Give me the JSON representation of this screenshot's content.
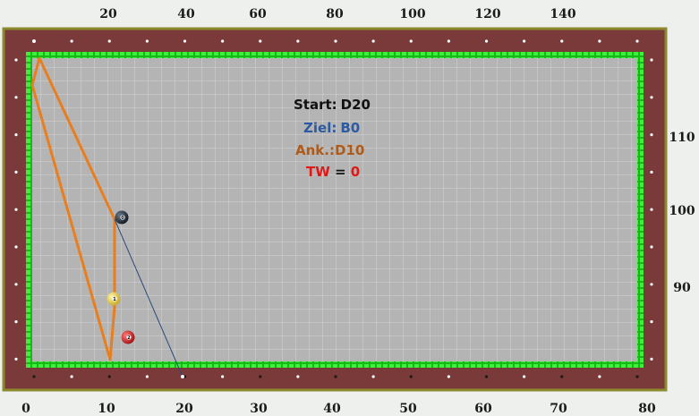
{
  "scales": {
    "top": [
      "20",
      "40",
      "60",
      "80",
      "100",
      "120",
      "140"
    ],
    "bottom": [
      "0",
      "10",
      "20",
      "30",
      "40",
      "50",
      "60",
      "70",
      "80"
    ],
    "right": [
      "110",
      "100",
      "90"
    ]
  },
  "info": {
    "start_label": "Start:",
    "start_value": "D20",
    "ziel_label": "Ziel:",
    "ziel_value": "B0",
    "ank_label": "Ank.:",
    "ank_value": "D10",
    "tw_label": "TW",
    "tw_eq": " = ",
    "tw_value": "0"
  },
  "balls": [
    {
      "name": "black-ball",
      "label": "0",
      "color": "#1b2a3a"
    },
    {
      "name": "yellow-ball",
      "label": "1",
      "color": "#e8d64a"
    },
    {
      "name": "red-ball",
      "label": "2",
      "color": "#cc1f1f"
    }
  ],
  "colors": {
    "rail": "#7a3a3a",
    "cloth": "#b4b4b4",
    "cushion": "#22dd22",
    "path": "#e87e1e",
    "aim_line": "#2a4a7a",
    "start_color": "#111111",
    "ziel_color": "#2e5aa0",
    "ank_color": "#b05a18",
    "tw_color": "#e01818"
  }
}
